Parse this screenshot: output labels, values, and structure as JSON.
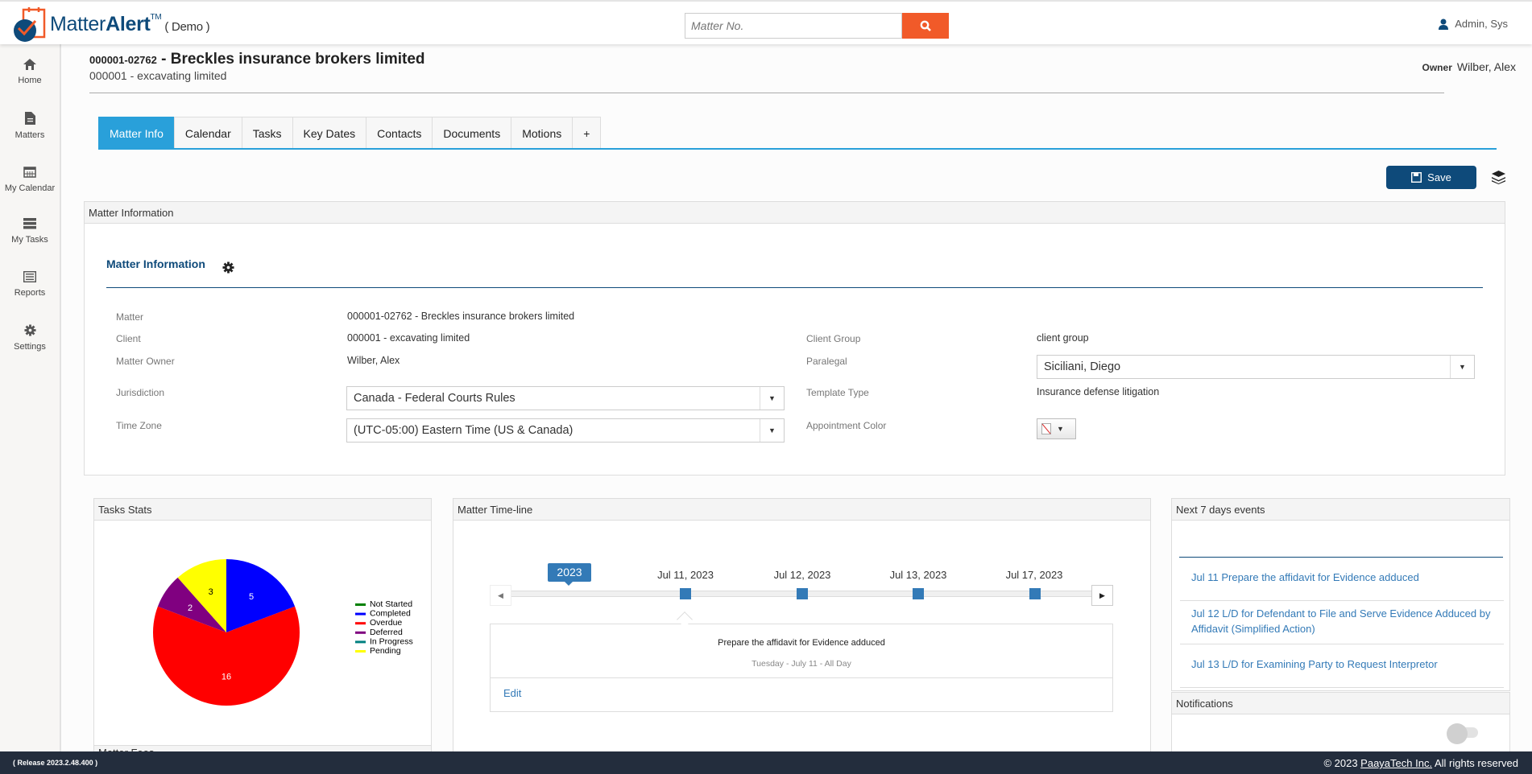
{
  "header": {
    "brand_plain": "Matter",
    "brand_bold": "Alert",
    "brand_tm": "TM",
    "brand_suffix": "( Demo )",
    "search_placeholder": "Matter No.",
    "user": "Admin, Sys"
  },
  "sidebar": {
    "items": [
      {
        "label": "Home",
        "icon": "home-icon"
      },
      {
        "label": "Matters",
        "icon": "file-icon"
      },
      {
        "label": "My Calendar",
        "icon": "calendar-icon"
      },
      {
        "label": "My Tasks",
        "icon": "tasks-icon"
      },
      {
        "label": "Reports",
        "icon": "list-icon"
      },
      {
        "label": "Settings",
        "icon": "gear-icon"
      }
    ]
  },
  "matter": {
    "number": "000001-02762",
    "name": "- Breckles insurance brokers limited",
    "client": "000001 - excavating limited",
    "owner_label": "Owner",
    "owner": "Wilber, Alex"
  },
  "tabs": [
    "Matter Info",
    "Calendar",
    "Tasks",
    "Key Dates",
    "Contacts",
    "Documents",
    "Motions",
    "+"
  ],
  "toolbar": {
    "save_label": "Save"
  },
  "matter_info": {
    "panel_title": "Matter Information",
    "section_title": "Matter Information",
    "fields": {
      "matter": {
        "label": "Matter",
        "value": "000001-02762 - Breckles insurance brokers limited"
      },
      "client": {
        "label": "Client",
        "value": "000001 - excavating limited"
      },
      "owner": {
        "label": "Matter Owner",
        "value": "Wilber, Alex"
      },
      "jurisdiction": {
        "label": "Jurisdiction",
        "value": "Canada - Federal Courts Rules"
      },
      "timezone": {
        "label": "Time Zone",
        "value": "(UTC-05:00) Eastern Time (US & Canada)"
      },
      "client_group": {
        "label": "Client Group",
        "value": "client group"
      },
      "paralegal": {
        "label": "Paralegal",
        "value": "Siciliani, Diego"
      },
      "template_type": {
        "label": "Template Type",
        "value": "Insurance defense litigation"
      },
      "appointment_color": {
        "label": "Appointment Color",
        "value": "none"
      }
    }
  },
  "tasks_stats": {
    "title": "Tasks Stats",
    "next_panel_title": "Matter Fees"
  },
  "chart_data": {
    "type": "pie",
    "categories": [
      "Not Started",
      "Completed",
      "Overdue",
      "Deferred",
      "In Progress",
      "Pending"
    ],
    "values": [
      0,
      5,
      16,
      2,
      0,
      3
    ],
    "colors": [
      "#008000",
      "#0000ff",
      "#ff0000",
      "#800080",
      "#008080",
      "#ffff00"
    ],
    "legend_position": "right"
  },
  "timeline": {
    "title": "Matter Time-line",
    "year": "2023",
    "dates": [
      "Jul 11, 2023",
      "Jul 12, 2023",
      "Jul 13, 2023",
      "Jul 17, 2023"
    ],
    "event_title": "Prepare the affidavit for Evidence adduced",
    "event_date": "Tuesday - July 11 - All Day",
    "edit_label": "Edit",
    "accent": "#337ab7"
  },
  "next_events": {
    "title": "Next 7 days events",
    "items": [
      "Jul 11 Prepare the affidavit for Evidence adduced",
      "Jul 12 L/D for Defendant to File and Serve Evidence Adduced by Affidavit (Simplified Action)",
      "Jul 13 L/D for Examining Party to Request Interpretor"
    ]
  },
  "notifications": {
    "title": "Notifications",
    "enabled": false
  },
  "footer": {
    "release": "( Release 2023.2.48.400 )",
    "copyright_prefix": "© 2023 ",
    "company": "PaayaTech Inc.",
    "copyright_suffix": " All rights reserved"
  },
  "colors": {
    "brand": "#0e4a7a",
    "accent": "#29a0da",
    "search_button": "#f15a29",
    "footer": "#232d3d"
  }
}
